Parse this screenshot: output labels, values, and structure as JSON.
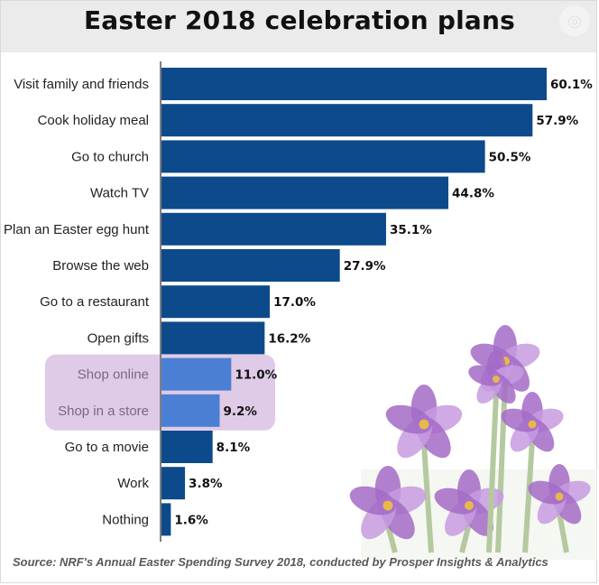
{
  "chart_data": {
    "type": "bar",
    "orientation": "horizontal",
    "title": "Easter 2018 celebration plans",
    "categories": [
      "Visit family and friends",
      "Cook holiday meal",
      "Go to church",
      "Watch TV",
      "Plan an Easter egg hunt",
      "Browse the web",
      "Go to a restaurant",
      "Open gifts",
      "Shop online",
      "Shop in a store",
      "Go to a movie",
      "Work",
      "Nothing"
    ],
    "values": [
      60.1,
      57.9,
      50.5,
      44.8,
      35.1,
      27.9,
      17.0,
      16.2,
      11.0,
      9.2,
      8.1,
      3.8,
      1.6
    ],
    "value_labels": [
      "60.1%",
      "57.9%",
      "50.5%",
      "44.8%",
      "35.1%",
      "27.9%",
      "17.0%",
      "16.2%",
      "11.0%",
      "9.2%",
      "8.1%",
      "3.8%",
      "1.6%"
    ],
    "highlighted": [
      "Shop online",
      "Shop in a store"
    ],
    "xlim": [
      0,
      65
    ],
    "grid": false,
    "colors": {
      "bar": "#0d4a8c",
      "bar_highlight": "#4a7fd4",
      "highlight_box": "#d9c2e3",
      "highlight_text": "#7a6688",
      "label_text": "#222222",
      "value_text": "#111111"
    },
    "source": "Source: NRF's Annual Easter Spending Survey 2018, conducted by Prosper Insights & Analytics"
  },
  "decoration": {
    "watermark_icon": "circle-watermark-icon",
    "image": "purple-crocus-flowers"
  }
}
